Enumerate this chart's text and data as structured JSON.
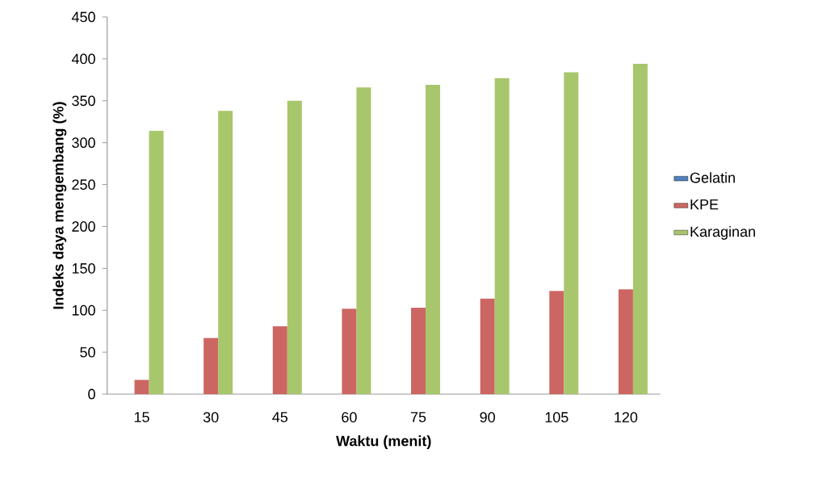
{
  "chart_data": {
    "type": "bar",
    "xlabel": "Waktu (menit)",
    "ylabel": "Indeks daya mengembang (%)",
    "categories": [
      "15",
      "30",
      "45",
      "60",
      "75",
      "90",
      "105",
      "120"
    ],
    "series": [
      {
        "name": "Gelatin",
        "color": "#4f81bd",
        "values": [
          0,
          0,
          0,
          0,
          0,
          0,
          0,
          0
        ]
      },
      {
        "name": "KPE",
        "color": "#cc6662",
        "values": [
          17,
          67,
          81,
          102,
          103,
          114,
          123,
          125
        ]
      },
      {
        "name": "Karaginan",
        "color": "#a8c66c",
        "values": [
          314,
          338,
          350,
          366,
          369,
          377,
          384,
          394
        ]
      }
    ],
    "ylim": [
      0,
      450
    ],
    "yticks": [
      0,
      50,
      100,
      150,
      200,
      250,
      300,
      350,
      400,
      450
    ],
    "grid": false,
    "legend": "right"
  }
}
